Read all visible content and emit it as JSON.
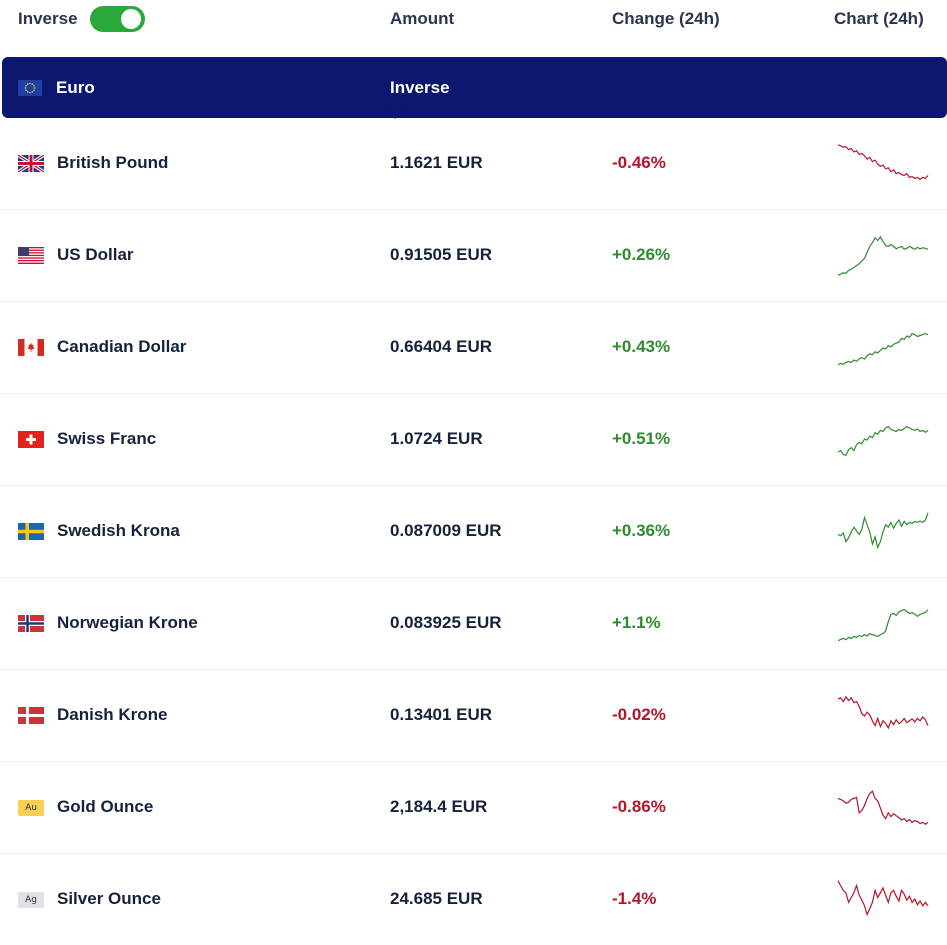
{
  "header": {
    "toggle_label": "Inverse",
    "toggle_on": true,
    "columns": {
      "amount": "Amount",
      "change": "Change (24h)",
      "chart": "Chart (24h)"
    }
  },
  "base": {
    "name": "Euro",
    "icon": "eu-flag-icon",
    "inverse_label": "Inverse"
  },
  "colors": {
    "up": "#2e8b2e",
    "down": "#b3152b",
    "base_bg": "#0c1770",
    "toggle_on": "#2aa83a"
  },
  "rows": [
    {
      "name": "British Pound",
      "icon": "uk-flag-icon",
      "amount": "1.1621 EUR",
      "change": "-0.46%",
      "direction": "down",
      "trend": [
        0.1,
        0.12,
        0.15,
        0.14,
        0.2,
        0.18,
        0.25,
        0.22,
        0.3,
        0.28,
        0.33,
        0.4,
        0.36,
        0.45,
        0.42,
        0.5,
        0.55,
        0.52,
        0.6,
        0.58,
        0.66,
        0.62,
        0.7,
        0.68,
        0.72,
        0.74,
        0.7,
        0.78,
        0.76,
        0.8,
        0.78,
        0.82,
        0.78,
        0.8,
        0.74
      ]
    },
    {
      "name": "US Dollar",
      "icon": "us-flag-icon",
      "amount": "0.91505 EUR",
      "change": "+0.26%",
      "direction": "up",
      "trend": [
        0.9,
        0.88,
        0.85,
        0.86,
        0.8,
        0.78,
        0.74,
        0.7,
        0.66,
        0.6,
        0.55,
        0.42,
        0.3,
        0.22,
        0.12,
        0.18,
        0.1,
        0.2,
        0.28,
        0.3,
        0.26,
        0.3,
        0.35,
        0.32,
        0.3,
        0.36,
        0.34,
        0.3,
        0.33,
        0.36,
        0.32,
        0.35,
        0.33,
        0.34,
        0.36
      ]
    },
    {
      "name": "Canadian Dollar",
      "icon": "ca-flag-icon",
      "amount": "0.66404 EUR",
      "change": "+0.43%",
      "direction": "up",
      "trend": [
        0.85,
        0.82,
        0.84,
        0.8,
        0.78,
        0.8,
        0.75,
        0.78,
        0.72,
        0.7,
        0.73,
        0.66,
        0.62,
        0.64,
        0.58,
        0.6,
        0.55,
        0.5,
        0.52,
        0.45,
        0.48,
        0.42,
        0.4,
        0.38,
        0.3,
        0.32,
        0.25,
        0.28,
        0.2,
        0.22,
        0.26,
        0.24,
        0.22,
        0.2,
        0.22
      ]
    },
    {
      "name": "Swiss Franc",
      "icon": "ch-flag-icon",
      "amount": "1.0724 EUR",
      "change": "+0.51%",
      "direction": "up",
      "trend": [
        0.75,
        0.72,
        0.8,
        0.82,
        0.7,
        0.66,
        0.72,
        0.6,
        0.55,
        0.58,
        0.48,
        0.5,
        0.42,
        0.45,
        0.35,
        0.38,
        0.3,
        0.32,
        0.25,
        0.22,
        0.28,
        0.3,
        0.32,
        0.28,
        0.3,
        0.26,
        0.22,
        0.25,
        0.28,
        0.3,
        0.27,
        0.32,
        0.3,
        0.34,
        0.3
      ]
    },
    {
      "name": "Swedish Krona",
      "icon": "se-flag-icon",
      "amount": "0.087009 EUR",
      "change": "+0.36%",
      "direction": "up",
      "trend": [
        0.55,
        0.58,
        0.52,
        0.7,
        0.62,
        0.5,
        0.4,
        0.48,
        0.55,
        0.45,
        0.2,
        0.35,
        0.5,
        0.75,
        0.6,
        0.82,
        0.7,
        0.5,
        0.35,
        0.4,
        0.3,
        0.42,
        0.32,
        0.25,
        0.38,
        0.28,
        0.35,
        0.3,
        0.32,
        0.28,
        0.3,
        0.27,
        0.3,
        0.25,
        0.1
      ]
    },
    {
      "name": "Norwegian Krone",
      "icon": "no-flag-icon",
      "amount": "0.083925 EUR",
      "change": "+1.1%",
      "direction": "up",
      "trend": [
        0.85,
        0.82,
        0.8,
        0.83,
        0.78,
        0.8,
        0.76,
        0.78,
        0.74,
        0.76,
        0.72,
        0.75,
        0.7,
        0.72,
        0.74,
        0.76,
        0.72,
        0.7,
        0.65,
        0.45,
        0.3,
        0.28,
        0.32,
        0.25,
        0.22,
        0.2,
        0.24,
        0.28,
        0.26,
        0.3,
        0.34,
        0.3,
        0.28,
        0.26,
        0.2
      ]
    },
    {
      "name": "Danish Krone",
      "icon": "dk-flag-icon",
      "amount": "0.13401 EUR",
      "change": "-0.02%",
      "direction": "down",
      "trend": [
        0.15,
        0.12,
        0.2,
        0.1,
        0.18,
        0.12,
        0.22,
        0.2,
        0.3,
        0.45,
        0.5,
        0.42,
        0.48,
        0.6,
        0.7,
        0.55,
        0.72,
        0.6,
        0.65,
        0.75,
        0.6,
        0.68,
        0.58,
        0.66,
        0.62,
        0.55,
        0.64,
        0.6,
        0.56,
        0.62,
        0.55,
        0.6,
        0.52,
        0.58,
        0.7
      ]
    },
    {
      "name": "Gold Ounce",
      "icon": "gold-ounce-icon",
      "badge": "Au",
      "amount": "2,184.4 EUR",
      "change": "-0.86%",
      "direction": "down",
      "trend": [
        0.3,
        0.32,
        0.35,
        0.4,
        0.38,
        0.32,
        0.3,
        0.28,
        0.6,
        0.55,
        0.45,
        0.3,
        0.2,
        0.15,
        0.3,
        0.35,
        0.5,
        0.65,
        0.72,
        0.6,
        0.68,
        0.62,
        0.66,
        0.7,
        0.75,
        0.72,
        0.78,
        0.74,
        0.8,
        0.76,
        0.78,
        0.82,
        0.8,
        0.84,
        0.8
      ]
    },
    {
      "name": "Silver Ounce",
      "icon": "silver-ounce-icon",
      "badge": "Ag",
      "amount": "24.685 EUR",
      "change": "-1.4%",
      "direction": "down",
      "trend": [
        0.1,
        0.2,
        0.3,
        0.35,
        0.55,
        0.45,
        0.35,
        0.2,
        0.4,
        0.5,
        0.62,
        0.8,
        0.68,
        0.55,
        0.3,
        0.45,
        0.35,
        0.25,
        0.4,
        0.55,
        0.35,
        0.3,
        0.42,
        0.52,
        0.3,
        0.38,
        0.5,
        0.42,
        0.55,
        0.48,
        0.6,
        0.52,
        0.62,
        0.55,
        0.62
      ]
    }
  ]
}
